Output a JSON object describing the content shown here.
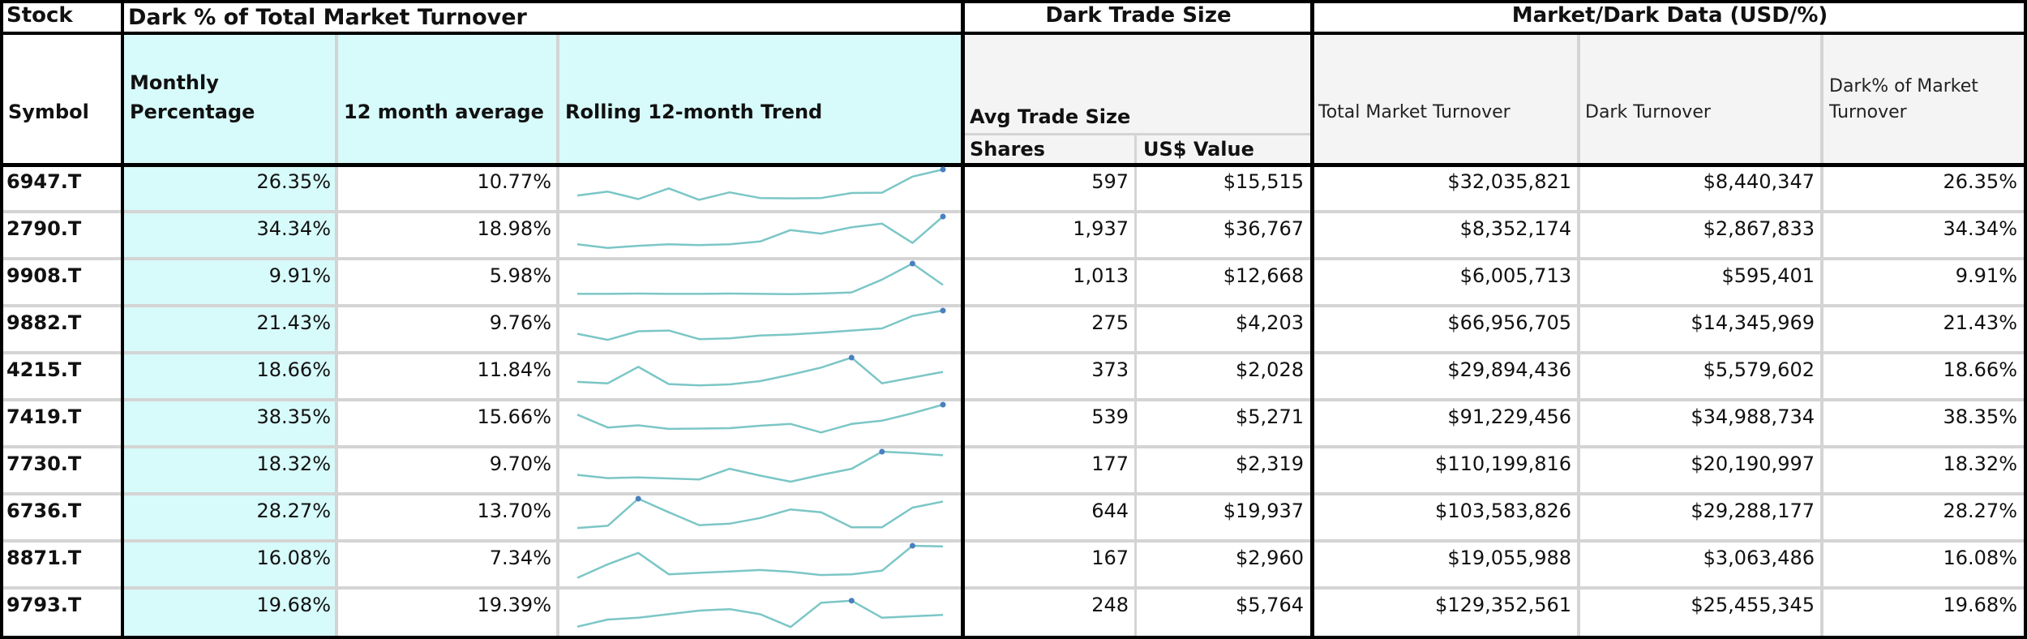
{
  "headers": {
    "stock": "Stock",
    "dark_pct_group": "Dark % of Total Market Turnover",
    "dark_trade_size_group": "Dark Trade Size",
    "market_dark_group": "Market/Dark Data (USD/%)",
    "symbol": "Symbol",
    "monthly_pct_line1": "Monthly",
    "monthly_pct_line2": "Percentage",
    "avg_12m": "12 month average",
    "rolling_trend": "Rolling 12-month Trend",
    "avg_trade_size": "Avg Trade Size",
    "shares": "Shares",
    "usd_value": "US$ Value",
    "total_turnover": "Total Market Turnover",
    "dark_turnover": "Dark Turnover",
    "dark_pct_market_line1": "Dark% of Market",
    "dark_pct_market_line2": "Turnover"
  },
  "colors": {
    "highlight_cyan": "#d7fafa",
    "trend_line": "#7cc6c6",
    "trend_marker": "#4a7fc0"
  },
  "rows": [
    {
      "symbol": "6947.T",
      "monthly": "26.35%",
      "avg12": "10.77%",
      "shares": "597",
      "usd": "$15,515",
      "total": "$32,035,821",
      "dark": "$8,440,347",
      "darkpct": "26.35%"
    },
    {
      "symbol": "2790.T",
      "monthly": "34.34%",
      "avg12": "18.98%",
      "shares": "1,937",
      "usd": "$36,767",
      "total": "$8,352,174",
      "dark": "$2,867,833",
      "darkpct": "34.34%"
    },
    {
      "symbol": "9908.T",
      "monthly": "9.91%",
      "avg12": "5.98%",
      "shares": "1,013",
      "usd": "$12,668",
      "total": "$6,005,713",
      "dark": "$595,401",
      "darkpct": "9.91%"
    },
    {
      "symbol": "9882.T",
      "monthly": "21.43%",
      "avg12": "9.76%",
      "shares": "275",
      "usd": "$4,203",
      "total": "$66,956,705",
      "dark": "$14,345,969",
      "darkpct": "21.43%"
    },
    {
      "symbol": "4215.T",
      "monthly": "18.66%",
      "avg12": "11.84%",
      "shares": "373",
      "usd": "$2,028",
      "total": "$29,894,436",
      "dark": "$5,579,602",
      "darkpct": "18.66%"
    },
    {
      "symbol": "7419.T",
      "monthly": "38.35%",
      "avg12": "15.66%",
      "shares": "539",
      "usd": "$5,271",
      "total": "$91,229,456",
      "dark": "$34,988,734",
      "darkpct": "38.35%"
    },
    {
      "symbol": "7730.T",
      "monthly": "18.32%",
      "avg12": "9.70%",
      "shares": "177",
      "usd": "$2,319",
      "total": "$110,199,816",
      "dark": "$20,190,997",
      "darkpct": "18.32%"
    },
    {
      "symbol": "6736.T",
      "monthly": "28.27%",
      "avg12": "13.70%",
      "shares": "644",
      "usd": "$19,937",
      "total": "$103,583,826",
      "dark": "$29,288,177",
      "darkpct": "28.27%"
    },
    {
      "symbol": "8871.T",
      "monthly": "16.08%",
      "avg12": "7.34%",
      "shares": "167",
      "usd": "$2,960",
      "total": "$19,055,988",
      "dark": "$3,063,486",
      "darkpct": "16.08%"
    },
    {
      "symbol": "9793.T",
      "monthly": "19.68%",
      "avg12": "19.39%",
      "shares": "248",
      "usd": "$5,764",
      "total": "$129,352,561",
      "dark": "$25,455,345",
      "darkpct": "19.68%"
    }
  ],
  "trends": [
    {
      "values": [
        0.27,
        0.38,
        0.17,
        0.47,
        0.15,
        0.36,
        0.2,
        0.19,
        0.2,
        0.34,
        0.35,
        0.8,
        1.0
      ],
      "marker": 12
    },
    {
      "values": [
        0.22,
        0.12,
        0.18,
        0.22,
        0.2,
        0.22,
        0.3,
        0.62,
        0.52,
        0.7,
        0.8,
        0.26,
        1.0
      ],
      "marker": 12
    },
    {
      "values": [
        0.15,
        0.15,
        0.16,
        0.15,
        0.15,
        0.16,
        0.15,
        0.14,
        0.16,
        0.19,
        0.55,
        1.0,
        0.4
      ],
      "marker": 11
    },
    {
      "values": [
        0.35,
        0.18,
        0.42,
        0.44,
        0.2,
        0.22,
        0.3,
        0.33,
        0.38,
        0.44,
        0.5,
        0.85,
        1.0
      ],
      "marker": 12
    },
    {
      "values": [
        0.32,
        0.28,
        0.74,
        0.26,
        0.22,
        0.25,
        0.34,
        0.52,
        0.72,
        1.0,
        0.28,
        0.44,
        0.6
      ],
      "marker": 9
    },
    {
      "values": [
        0.72,
        0.36,
        0.42,
        0.32,
        0.33,
        0.34,
        0.41,
        0.46,
        0.22,
        0.46,
        0.55,
        0.76,
        1.0
      ],
      "marker": 12
    },
    {
      "values": [
        0.35,
        0.26,
        0.28,
        0.25,
        0.22,
        0.52,
        0.33,
        0.16,
        0.35,
        0.52,
        1.0,
        0.96,
        0.9
      ],
      "marker": 10
    },
    {
      "values": [
        0.18,
        0.24,
        1.0,
        0.62,
        0.26,
        0.3,
        0.46,
        0.7,
        0.62,
        0.2,
        0.2,
        0.75,
        0.92
      ],
      "marker": 2
    },
    {
      "values": [
        0.1,
        0.48,
        0.8,
        0.2,
        0.24,
        0.28,
        0.32,
        0.27,
        0.18,
        0.2,
        0.3,
        1.0,
        0.98
      ],
      "marker": 11
    },
    {
      "values": [
        0.05,
        0.25,
        0.3,
        0.4,
        0.5,
        0.54,
        0.4,
        0.04,
        0.72,
        0.78,
        0.3,
        0.34,
        0.38
      ],
      "marker": 9
    }
  ]
}
